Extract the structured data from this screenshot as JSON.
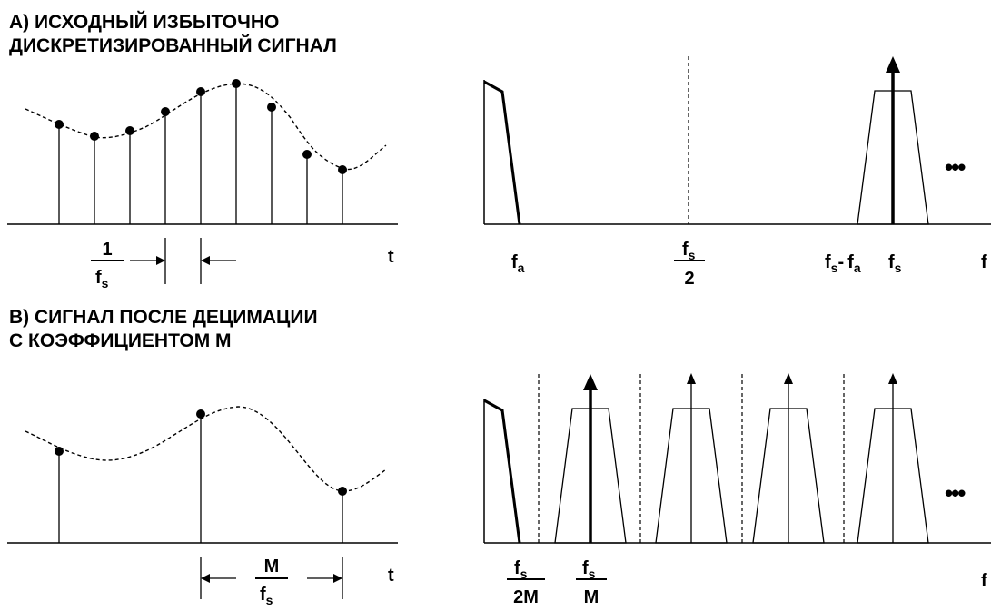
{
  "panel_a": {
    "title_line1": "A) ИСХОДНЫЙ ИЗБЫТОЧНО",
    "title_line2": "ДИСКРЕТИЗИРОВАННЫЙ СИГНАЛ",
    "interval_numerator": "1",
    "interval_denominator_main": "f",
    "interval_denominator_sub": "s",
    "time_axis": "t",
    "spectrum": {
      "fa_main": "f",
      "fa_sub": "a",
      "half_numerator_main": "f",
      "half_numerator_sub": "s",
      "half_denominator": "2",
      "fs_minus_fa": {
        "f1": "f",
        "s1": "s",
        "minus": "-",
        "f2": "f",
        "s2": "a"
      },
      "fs_main": "f",
      "fs_sub": "s",
      "axis_end": "f",
      "ellipsis": "•••"
    }
  },
  "panel_b": {
    "title_line1": "B) СИГНАЛ ПОСЛЕ ДЕЦИМАЦИИ",
    "title_line2": "С КОЭФФИЦИЕНТОМ M",
    "interval_numerator": "M",
    "interval_denominator_main": "f",
    "interval_denominator_sub": "s",
    "time_axis": "t",
    "spectrum": {
      "f2m_numerator_main": "f",
      "f2m_numerator_sub": "s",
      "f2m_denominator": "2M",
      "fm_numerator_main": "f",
      "fm_numerator_sub": "s",
      "fm_denominator": "M",
      "axis_end": "f",
      "ellipsis": "•••"
    }
  },
  "colors": {
    "ink": "#000000",
    "background": "#ffffff"
  }
}
